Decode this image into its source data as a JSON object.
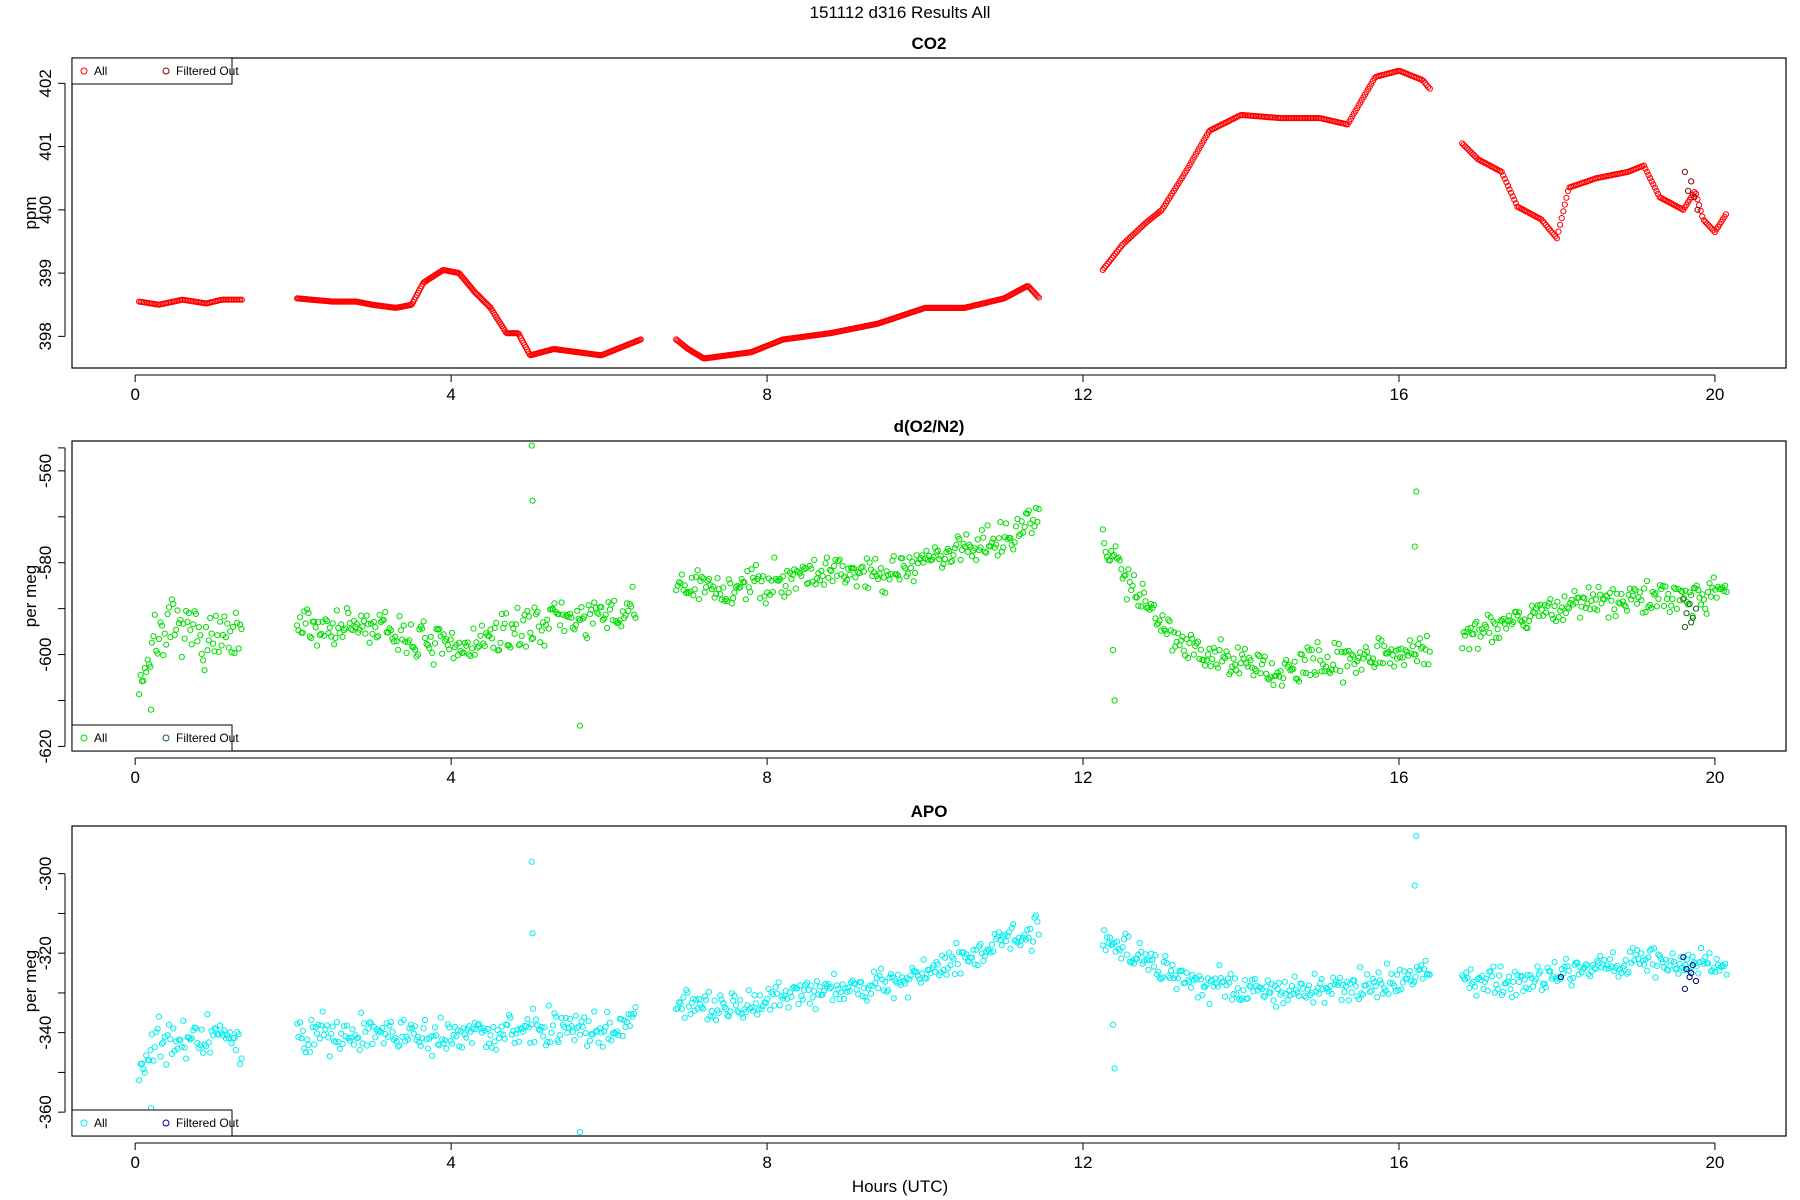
{
  "figure": {
    "title": "151112   d316   Results All",
    "xlabel": "Hours (UTC)"
  },
  "chart_data": [
    {
      "type": "scatter",
      "title": "CO2",
      "ylabel": "ppm",
      "xlim": [
        -0.8,
        20.9
      ],
      "ylim": [
        397.5,
        402.4
      ],
      "xticks": [
        0,
        4,
        8,
        12,
        16,
        20
      ],
      "yticks": [
        398,
        399,
        400,
        401,
        402
      ],
      "ytick_rotation": -90,
      "legend": {
        "position": "top-left",
        "items": [
          "All",
          "Filtered Out"
        ]
      },
      "series": [
        {
          "name": "All",
          "color": "#ff0000",
          "kind": "smooth",
          "segments": [
            {
              "x": [
                0.05,
                0.3,
                0.6,
                0.9,
                1.1,
                1.35
              ],
              "y": [
                398.55,
                398.5,
                398.58,
                398.52,
                398.58,
                398.58
              ],
              "step": 0.02
            },
            {
              "x": [
                2.05,
                2.5,
                2.8,
                3.0,
                3.3,
                3.5,
                3.65,
                3.9,
                4.1,
                4.3,
                4.5,
                4.7,
                4.85,
                5.0,
                5.3,
                5.6,
                5.9,
                6.2,
                6.4
              ],
              "y": [
                398.6,
                398.55,
                398.55,
                398.5,
                398.45,
                398.5,
                398.85,
                399.05,
                399.0,
                398.7,
                398.45,
                398.05,
                398.05,
                397.7,
                397.8,
                397.75,
                397.7,
                397.85,
                397.95
              ],
              "step": 0.015
            },
            {
              "x": [
                6.85,
                7.0,
                7.2,
                7.5,
                7.8,
                8.2,
                8.8,
                9.4,
                10.0,
                10.5,
                11.0,
                11.3,
                11.45
              ],
              "y": [
                397.95,
                397.8,
                397.65,
                397.7,
                397.75,
                397.95,
                398.05,
                398.2,
                398.45,
                398.45,
                398.6,
                398.8,
                398.6
              ],
              "step": 0.015
            },
            {
              "x": [
                12.25,
                12.5,
                12.8,
                13.0,
                13.3,
                13.6,
                14.0,
                14.5,
                15.0,
                15.35,
                15.7,
                16.0,
                16.3,
                16.4
              ],
              "y": [
                399.05,
                399.45,
                399.8,
                400.0,
                400.6,
                401.25,
                401.5,
                401.45,
                401.45,
                401.35,
                402.1,
                402.2,
                402.05,
                401.9
              ],
              "step": 0.02
            },
            {
              "x": [
                16.8,
                17.0,
                17.3,
                17.5,
                17.8,
                18.0,
                18.15,
                18.5,
                18.9,
                19.1,
                19.3,
                19.6,
                19.75,
                19.85,
                20.0,
                20.15
              ],
              "y": [
                401.05,
                400.8,
                400.6,
                400.05,
                399.85,
                399.55,
                400.35,
                400.5,
                400.6,
                400.7,
                400.2,
                400.0,
                400.3,
                399.85,
                399.65,
                399.95
              ],
              "step": 0.02
            }
          ]
        },
        {
          "name": "Filtered Out",
          "color": "#8b0000",
          "kind": "points",
          "x": [
            19.62,
            19.66,
            19.7,
            19.74,
            19.78
          ],
          "y": [
            400.6,
            400.3,
            400.45,
            400.2,
            400.0
          ]
        }
      ]
    },
    {
      "type": "scatter",
      "title": "d(O2/N2)",
      "ylabel": "per meg",
      "xlim": [
        -0.8,
        20.9
      ],
      "ylim": [
        -621,
        -553.5
      ],
      "xticks": [
        0,
        4,
        8,
        12,
        16,
        20
      ],
      "yticks": [
        -620,
        -600,
        -580,
        -560
      ],
      "yminor_ticks": [
        -610,
        -590,
        -570,
        -555
      ],
      "ytick_rotation": -90,
      "legend": {
        "position": "bottom-left",
        "items": [
          "All",
          "Filtered Out"
        ]
      },
      "series": [
        {
          "name": "All",
          "color": "#00dd00",
          "kind": "trend",
          "seed": 7,
          "spacing": 0.018,
          "segments": [
            {
              "x": [
                0.05,
                0.3,
                0.6,
                1.0,
                1.35
              ],
              "y": [
                -606,
                -595,
                -595,
                -597,
                -597
              ],
              "noise": 5.5
            },
            {
              "x": [
                2.05,
                3.0,
                4.0,
                4.6,
                5.3,
                6.0,
                6.35
              ],
              "y": [
                -594,
                -594,
                -599,
                -596,
                -592,
                -592,
                -590
              ],
              "noise": 4
            },
            {
              "x": [
                6.85,
                7.5,
                8.5,
                9.5,
                10.5,
                11.45
              ],
              "y": [
                -585,
                -586,
                -582,
                -582,
                -577,
                -571
              ],
              "noise": 3.8
            },
            {
              "x": [
                12.25,
                12.6,
                13.0,
                13.5,
                14.5,
                15.5,
                16.4
              ],
              "y": [
                -575,
                -584,
                -593,
                -600,
                -604,
                -600,
                -599
              ],
              "noise": 3.5
            },
            {
              "x": [
                16.8,
                17.5,
                18.2,
                19.0,
                20.15
              ],
              "y": [
                -596,
                -592,
                -589,
                -588,
                -586
              ],
              "noise": 3.2
            }
          ],
          "outliers": {
            "x": [
              5.02,
              5.03,
              5.63,
              16.2,
              16.22,
              12.4,
              12.38,
              0.2
            ],
            "y": [
              -554.5,
              -566.5,
              -615.5,
              -576.5,
              -564.5,
              -610,
              -599,
              -612
            ]
          }
        },
        {
          "name": "Filtered Out",
          "color": "#1a5c1a",
          "kind": "points",
          "x": [
            19.6,
            19.64,
            19.68,
            19.72,
            19.76,
            19.62,
            19.7
          ],
          "y": [
            -588,
            -591,
            -589,
            -592,
            -590,
            -594,
            -593
          ]
        }
      ]
    },
    {
      "type": "scatter",
      "title": "APO",
      "ylabel": "per meg",
      "xlim": [
        -0.8,
        20.9
      ],
      "ylim": [
        -366,
        -288
      ],
      "xticks": [
        0,
        4,
        8,
        12,
        16,
        20
      ],
      "yticks": [
        -360,
        -340,
        -320,
        -300
      ],
      "yminor_ticks": [
        -350,
        -330,
        -310
      ],
      "ytick_rotation": -90,
      "legend": {
        "position": "bottom-left",
        "items": [
          "All",
          "Filtered Out"
        ]
      },
      "series": [
        {
          "name": "All",
          "color": "#00eeee",
          "kind": "trend",
          "seed": 21,
          "spacing": 0.018,
          "segments": [
            {
              "x": [
                0.05,
                0.3,
                0.6,
                1.0,
                1.35
              ],
              "y": [
                -350,
                -341,
                -342,
                -341,
                -344
              ],
              "noise": 5.5
            },
            {
              "x": [
                2.05,
                3.0,
                4.0,
                5.0,
                6.0,
                6.35
              ],
              "y": [
                -340,
                -340,
                -341,
                -339,
                -340,
                -337
              ],
              "noise": 4.2
            },
            {
              "x": [
                6.85,
                7.5,
                8.5,
                9.5,
                10.5,
                11.45
              ],
              "y": [
                -333,
                -334,
                -330,
                -328,
                -321,
                -314
              ],
              "noise": 3.8
            },
            {
              "x": [
                12.25,
                12.6,
                13.2,
                14.0,
                14.8,
                15.6,
                16.4
              ],
              "y": [
                -315,
                -320,
                -326,
                -329,
                -330,
                -328,
                -325
              ],
              "noise": 3.5
            },
            {
              "x": [
                16.8,
                17.5,
                18.2,
                19.0,
                20.15
              ],
              "y": [
                -327,
                -327,
                -325,
                -322,
                -323
              ],
              "noise": 3.2
            }
          ],
          "outliers": {
            "x": [
              5.02,
              5.03,
              5.63,
              16.2,
              16.22,
              12.38,
              12.4,
              0.2
            ],
            "y": [
              -297,
              -315,
              -365,
              -303,
              -290.5,
              -338,
              -349,
              -359
            ]
          }
        },
        {
          "name": "Filtered Out",
          "color": "#000080",
          "kind": "points",
          "x": [
            18.05,
            19.6,
            19.64,
            19.68,
            19.72,
            19.76,
            19.62,
            19.7
          ],
          "y": [
            -326,
            -321,
            -324,
            -326,
            -323,
            -327,
            -329,
            -325
          ]
        }
      ]
    }
  ]
}
